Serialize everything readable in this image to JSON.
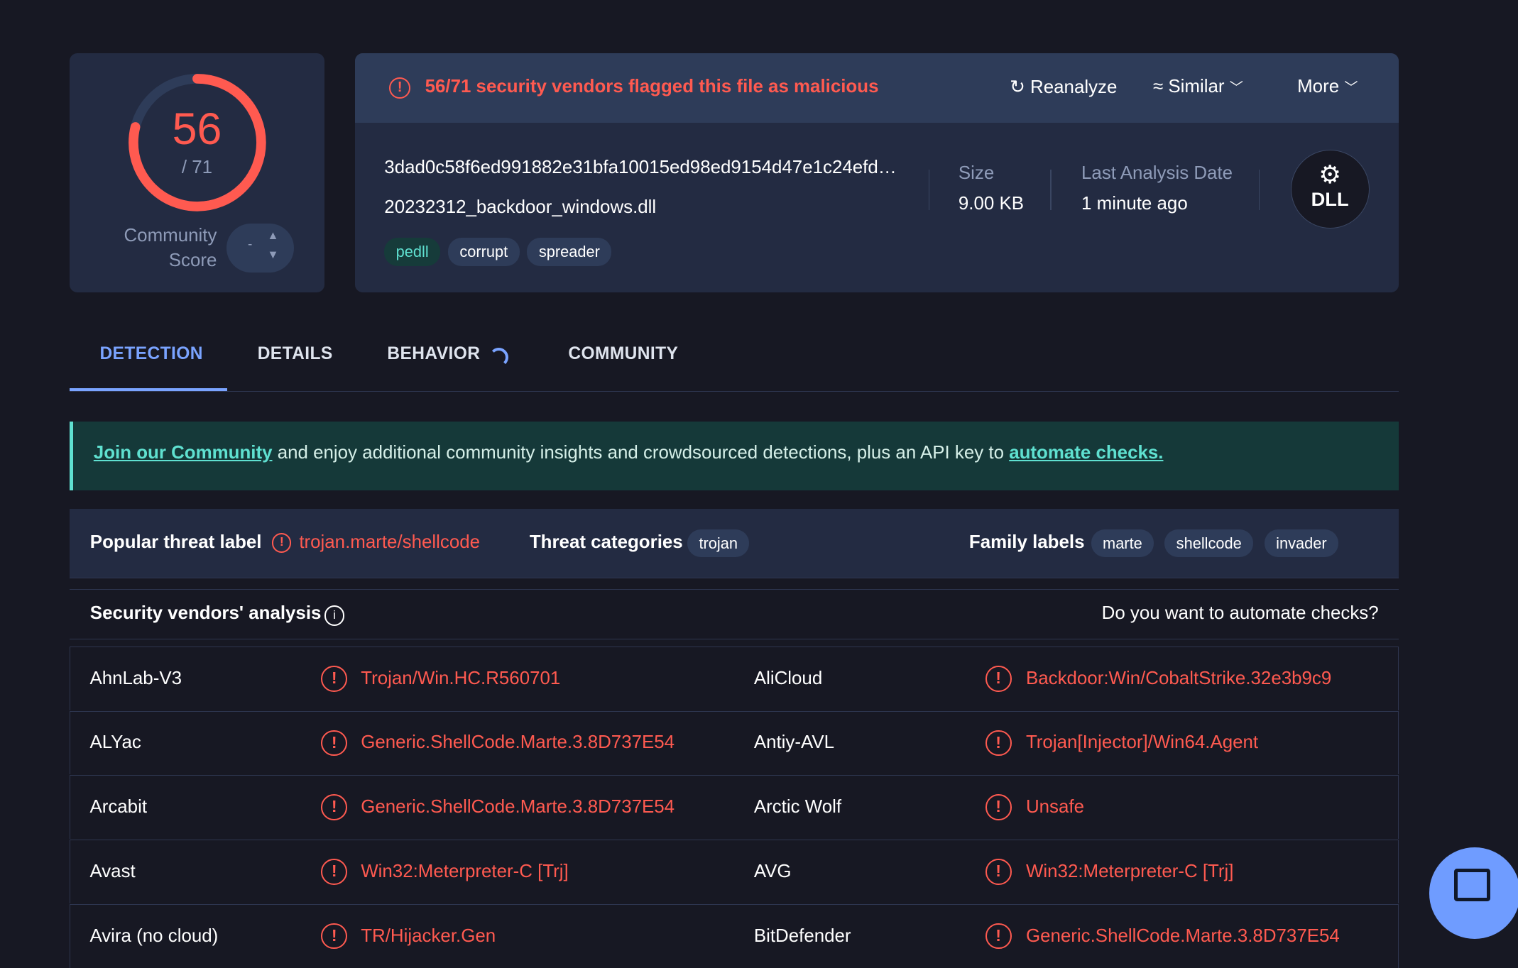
{
  "score": {
    "detected": "56",
    "total": "/ 71",
    "fraction": 0.789,
    "community_label_1": "Community",
    "community_label_2": "Score",
    "community_value": "-"
  },
  "alert": {
    "text": "56/71 security vendors flagged this file as malicious",
    "reanalyze": "Reanalyze",
    "similar": "Similar",
    "more": "More"
  },
  "file": {
    "hash": "3dad0c58f6ed991882e31bfa10015ed98ed9154d47e1c24efd…",
    "name": "20232312_backdoor_windows.dll",
    "tags": [
      "pedll",
      "corrupt",
      "spreader"
    ],
    "size_label": "Size",
    "size": "9.00 KB",
    "date_label": "Last Analysis Date",
    "date": "1 minute ago",
    "type_icon": "DLL"
  },
  "tabs": [
    "DETECTION",
    "DETAILS",
    "BEHAVIOR",
    "COMMUNITY"
  ],
  "banner": {
    "link1": "Join our Community",
    "text": " and enjoy additional community insights and crowdsourced detections, plus an API key to ",
    "link2": "automate checks."
  },
  "threat": {
    "popular_label": "Popular threat label",
    "popular_value": "trojan.marte/shellcode",
    "categories_label": "Threat categories",
    "categories": [
      "trojan"
    ],
    "family_label": "Family labels",
    "families": [
      "marte",
      "shellcode",
      "invader"
    ]
  },
  "vendors": {
    "title": "Security vendors' analysis",
    "automate": "Do you want to automate checks?",
    "rows": [
      {
        "v1": "AhnLab-V3",
        "r1": "Trojan/Win.HC.R560701",
        "v2": "AliCloud",
        "r2": "Backdoor:Win/CobaltStrike.32e3b9c9"
      },
      {
        "v1": "ALYac",
        "r1": "Generic.ShellCode.Marte.3.8D737E54",
        "v2": "Antiy-AVL",
        "r2": "Trojan[Injector]/Win64.Agent"
      },
      {
        "v1": "Arcabit",
        "r1": "Generic.ShellCode.Marte.3.8D737E54",
        "v2": "Arctic Wolf",
        "r2": "Unsafe"
      },
      {
        "v1": "Avast",
        "r1": "Win32:Meterpreter-C [Trj]",
        "v2": "AVG",
        "r2": "Win32:Meterpreter-C [Trj]"
      },
      {
        "v1": "Avira (no cloud)",
        "r1": "TR/Hijacker.Gen",
        "v2": "BitDefender",
        "r2": "Generic.ShellCode.Marte.3.8D737E54"
      }
    ]
  },
  "colors": {
    "malicious": "#ff5a50",
    "accent": "#6f9cff",
    "background": "#171823"
  }
}
